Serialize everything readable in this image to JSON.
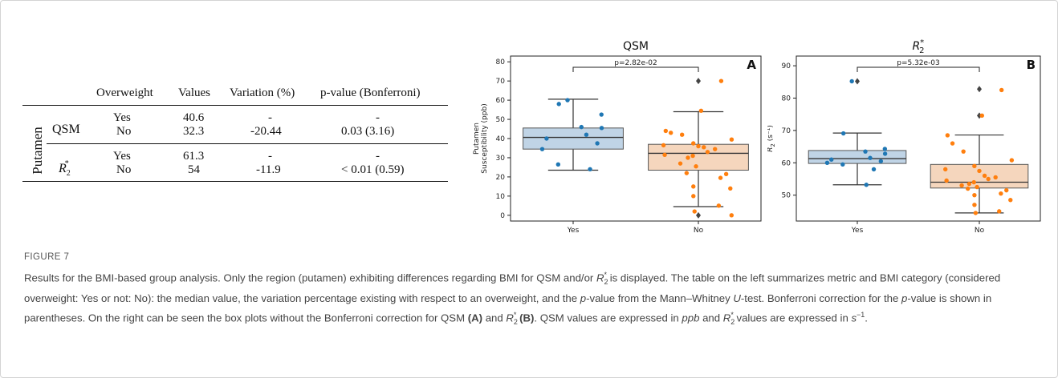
{
  "table": {
    "row_group": "Putamen",
    "headers": [
      "Overweight",
      "Values",
      "Variation (%)",
      "p-value (Bonferroni)"
    ],
    "metrics": [
      {
        "name": "QSM",
        "rows": [
          {
            "overweight": "Yes",
            "value": "40.6",
            "variation": "-",
            "pvalue": "-"
          },
          {
            "overweight": "No",
            "value": "32.3",
            "variation": "-20.44",
            "pvalue": "0.03 (3.16)"
          }
        ]
      },
      {
        "name": "R",
        "name_sub": "2",
        "name_sup": "*",
        "rows": [
          {
            "overweight": "Yes",
            "value": "61.3",
            "variation": "-",
            "pvalue": "-"
          },
          {
            "overweight": "No",
            "value": "54",
            "variation": "-11.9",
            "pvalue": "< 0.01 (0.59)"
          }
        ]
      }
    ]
  },
  "chart_data": [
    {
      "type": "box",
      "title": "QSM",
      "panel_letter": "A",
      "ylabel": "Putamen\nSusceptibility (ppb)",
      "ylim": [
        -3,
        83
      ],
      "yticks": [
        0,
        10,
        20,
        30,
        40,
        50,
        60,
        70,
        80
      ],
      "categories": [
        "Yes",
        "No"
      ],
      "colors": [
        "#1f77b4",
        "#ff7f0e"
      ],
      "box_fill": [
        "#c0d4e6",
        "#f5d6bd"
      ],
      "significance": "p=2.82e-02",
      "boxes": [
        {
          "whisker_low": 23.5,
          "q1": 34.5,
          "median": 40.6,
          "q3": 45.5,
          "whisker_high": 60.5,
          "outliers": []
        },
        {
          "whisker_low": 4.5,
          "q1": 23.5,
          "median": 32.3,
          "q3": 37,
          "whisker_high": 54,
          "outliers": [
            70,
            0
          ]
        }
      ],
      "points": [
        [
          60,
          58,
          52.5,
          46,
          45.5,
          42,
          40,
          37.5,
          34.5,
          26.5,
          24
        ],
        [
          70,
          54.5,
          44,
          43,
          42,
          39.5,
          37.5,
          36.5,
          36,
          35.5,
          34.5,
          33,
          31.5,
          31,
          30,
          27,
          25.5,
          22,
          21.5,
          19.5,
          15,
          14,
          10,
          5,
          2,
          0
        ]
      ]
    },
    {
      "type": "box",
      "title": "R",
      "title_sub": "2",
      "title_sup": "*",
      "panel_letter": "B",
      "ylabel": "R",
      "ylabel_sub": "2",
      "ylabel_unit": "(s⁻¹)",
      "ylim": [
        42,
        93
      ],
      "yticks": [
        50,
        60,
        70,
        80,
        90
      ],
      "categories": [
        "Yes",
        "No"
      ],
      "colors": [
        "#1f77b4",
        "#ff7f0e"
      ],
      "box_fill": [
        "#c0d4e6",
        "#f5d6bd"
      ],
      "significance": "p=5.32e-03",
      "boxes": [
        {
          "whisker_low": 53.2,
          "q1": 59.8,
          "median": 61.3,
          "q3": 63.8,
          "whisker_high": 69.2,
          "outliers": [
            85.2
          ]
        },
        {
          "whisker_low": 44.5,
          "q1": 52.2,
          "median": 54,
          "q3": 59.5,
          "whisker_high": 68.6,
          "outliers": [
            82.8,
            74.6
          ]
        }
      ],
      "points": [
        [
          85.2,
          69.1,
          64.3,
          63.5,
          62.8,
          61.5,
          61,
          60.5,
          60,
          59.5,
          58,
          53.2
        ],
        [
          82.5,
          74.6,
          68.5,
          66,
          63.5,
          60.8,
          59,
          58,
          57.5,
          56,
          55.5,
          55,
          54.5,
          54,
          53.5,
          53,
          52.5,
          52,
          51.5,
          50.5,
          50,
          48.5,
          47,
          45,
          44.5
        ]
      ]
    }
  ],
  "caption": {
    "label": "FIGURE 7",
    "s1": "Results for the BMI-based group analysis. Only the region (putamen) exhibiting differences regarding BMI for QSM and/or ",
    "s2": " is displayed. The table on the left summarizes metric and BMI category (considered overweight: Yes or not: No): the median value, the variation percentage existing with respect to an overweight, and the ",
    "p1": "p",
    "s3": "-value from the Mann–Whitney ",
    "u": "U",
    "s4": "-test. Bonferroni correction for the ",
    "p2": "p",
    "s5": "-value is shown in parentheses. On the right can be seen the box plots without the Bonferroni correction for QSM ",
    "a": "(A)",
    "s6": " and ",
    "b": "(B)",
    "s7": ". QSM values are expressed in ",
    "ppb": "ppb",
    "s8": " and ",
    "s9": " values are expressed in ",
    "s_unit": "s",
    "s_exp": "−1",
    "s10": ".",
    "r": "R",
    "r_sub": "2",
    "r_sup": "*"
  }
}
